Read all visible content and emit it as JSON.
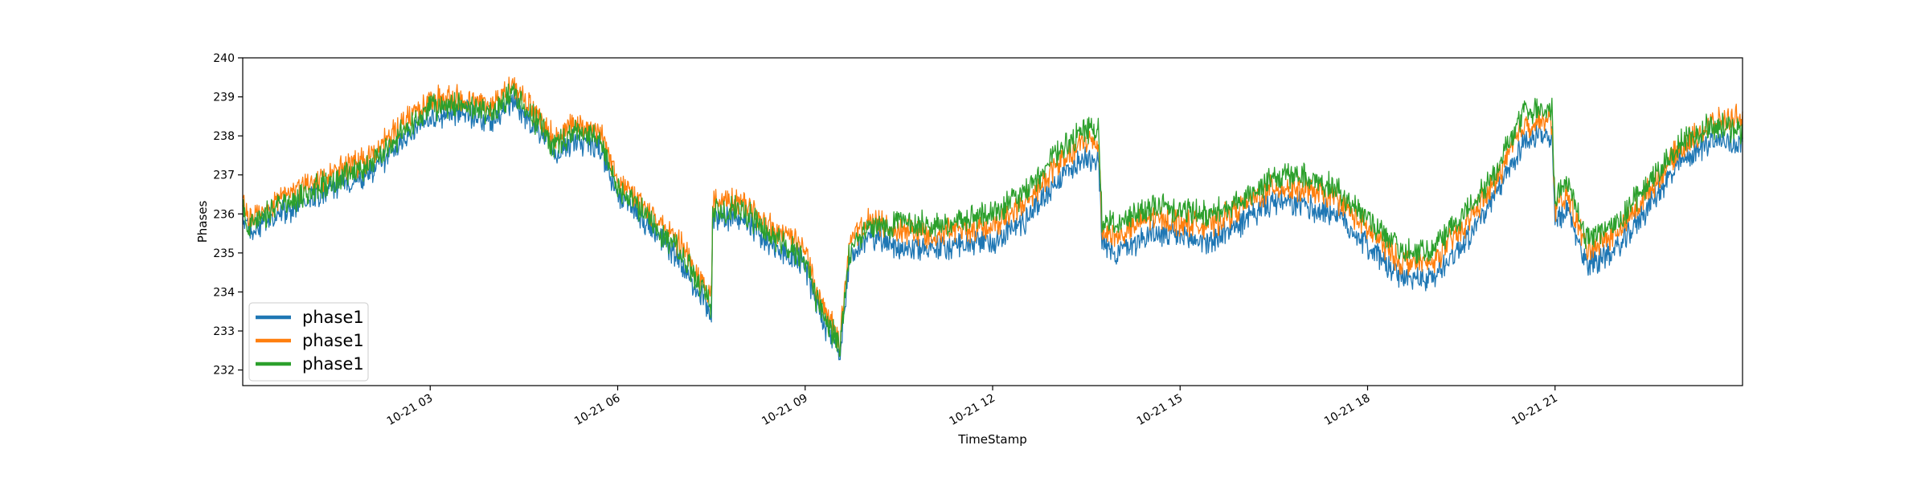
{
  "chart_data": {
    "type": "line",
    "title": "",
    "xlabel": "TimeStamp",
    "ylabel": "Phases",
    "x_unit": "hours",
    "xlim": [
      0,
      24
    ],
    "ylim": [
      231.6,
      240
    ],
    "x_ticks": [
      {
        "value": 3,
        "label": "10-21 03"
      },
      {
        "value": 6,
        "label": "10-21 06"
      },
      {
        "value": 9,
        "label": "10-21 09"
      },
      {
        "value": 12,
        "label": "10-21 12"
      },
      {
        "value": 15,
        "label": "10-21 15"
      },
      {
        "value": 18,
        "label": "10-21 18"
      },
      {
        "value": 21,
        "label": "10-21 21"
      }
    ],
    "y_ticks": [
      232,
      233,
      234,
      235,
      236,
      237,
      238,
      239,
      240
    ],
    "legend_position": "lower-left",
    "grid": false,
    "series": [
      {
        "name": "phase1",
        "color": "#1f77b4",
        "x": [
          0,
          0.1,
          0.5,
          1,
          1.5,
          2,
          2.5,
          3,
          3.5,
          4,
          4.3,
          4.7,
          5,
          5.3,
          5.7,
          6,
          6.5,
          7,
          7.2,
          7.5,
          7.52,
          8,
          8.5,
          9,
          9.2,
          9.5,
          9.55,
          9.7,
          10,
          10.5,
          11,
          11.5,
          12,
          12.5,
          13,
          13.5,
          13.7,
          13.75,
          14,
          14.5,
          15,
          15.5,
          16,
          16.5,
          17,
          17.5,
          18,
          18.5,
          19,
          19.5,
          20,
          20.5,
          20.95,
          21,
          21.2,
          21.5,
          22,
          22.5,
          23,
          23.5,
          24
        ],
        "y": [
          235.9,
          235.5,
          235.9,
          236.3,
          236.7,
          237.0,
          237.8,
          238.5,
          238.6,
          238.4,
          238.9,
          238.2,
          237.5,
          237.9,
          237.7,
          236.5,
          235.7,
          234.8,
          234.3,
          233.4,
          235.9,
          235.9,
          235.2,
          234.7,
          233.5,
          232.6,
          232.2,
          234.8,
          235.4,
          235.2,
          235.1,
          235.2,
          235.3,
          235.8,
          236.8,
          237.5,
          237.4,
          235.2,
          235.0,
          235.5,
          235.4,
          235.3,
          235.8,
          236.3,
          236.2,
          236.0,
          235.2,
          234.4,
          234.3,
          235.2,
          236.3,
          237.9,
          238.0,
          235.7,
          236.1,
          234.7,
          235.1,
          236.2,
          237.3,
          237.9,
          237.8
        ]
      },
      {
        "name": "phase1",
        "color": "#ff7f0e",
        "x": [
          0,
          0.1,
          0.5,
          1,
          1.5,
          2,
          2.5,
          3,
          3.5,
          4,
          4.3,
          4.7,
          5,
          5.3,
          5.7,
          6,
          6.5,
          7,
          7.2,
          7.5,
          7.52,
          8,
          8.5,
          9,
          9.2,
          9.5,
          9.55,
          9.7,
          10,
          10.5,
          11,
          11.5,
          12,
          12.5,
          13,
          13.5,
          13.7,
          13.75,
          14,
          14.5,
          15,
          15.5,
          16,
          16.5,
          17,
          17.5,
          18,
          18.5,
          19,
          19.5,
          20,
          20.5,
          20.95,
          21,
          21.2,
          21.5,
          22,
          22.5,
          23,
          23.5,
          24
        ],
        "y": [
          236.3,
          235.9,
          236.3,
          236.7,
          237.1,
          237.4,
          238.2,
          238.9,
          239.0,
          238.8,
          239.3,
          238.6,
          237.9,
          238.3,
          238.1,
          236.9,
          236.1,
          235.2,
          234.7,
          233.8,
          236.3,
          236.3,
          235.6,
          235.1,
          233.9,
          233.0,
          232.6,
          235.2,
          235.8,
          235.6,
          235.5,
          235.6,
          235.7,
          236.2,
          237.2,
          237.9,
          237.8,
          235.6,
          235.4,
          235.9,
          235.8,
          235.7,
          236.2,
          236.7,
          236.6,
          236.4,
          235.6,
          234.8,
          234.7,
          235.6,
          236.7,
          238.3,
          238.4,
          236.1,
          236.5,
          235.1,
          235.5,
          236.6,
          237.7,
          238.3,
          238.5
        ]
      },
      {
        "name": "phase1",
        "color": "#2ca02c",
        "x": [
          0,
          0.1,
          0.5,
          1,
          1.5,
          2,
          2.5,
          3,
          3.5,
          4,
          4.3,
          4.7,
          5,
          5.3,
          5.7,
          6,
          6.5,
          7,
          7.2,
          7.5,
          7.52,
          8,
          8.5,
          9,
          9.2,
          9.5,
          9.55,
          9.7,
          10,
          10.5,
          11,
          11.5,
          12,
          12.5,
          13,
          13.5,
          13.7,
          13.75,
          14,
          14.5,
          15,
          15.5,
          16,
          16.5,
          17,
          17.5,
          18,
          18.5,
          19,
          19.5,
          20,
          20.5,
          20.95,
          21,
          21.2,
          21.5,
          22,
          22.5,
          23,
          23.5,
          24
        ],
        "y": [
          236.1,
          235.7,
          236.1,
          236.5,
          236.9,
          237.2,
          238.0,
          238.7,
          238.8,
          238.6,
          239.1,
          238.4,
          237.7,
          238.1,
          237.9,
          236.7,
          235.9,
          235.0,
          234.5,
          233.6,
          236.1,
          236.1,
          235.4,
          234.9,
          233.7,
          232.8,
          232.4,
          235.0,
          235.6,
          235.8,
          235.7,
          235.8,
          236.0,
          236.5,
          237.5,
          238.2,
          238.1,
          235.9,
          235.7,
          236.2,
          236.1,
          236.0,
          236.4,
          236.9,
          237.0,
          236.6,
          235.9,
          235.1,
          235.0,
          235.9,
          237.0,
          238.6,
          238.7,
          236.4,
          236.8,
          235.4,
          235.8,
          236.8,
          237.8,
          238.3,
          238.1
        ]
      }
    ]
  }
}
